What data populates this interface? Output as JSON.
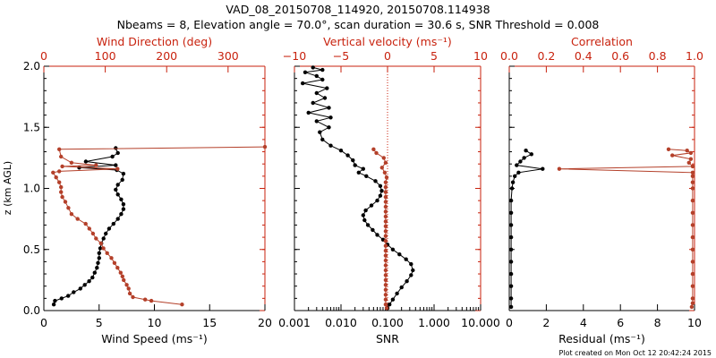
{
  "colors": {
    "black": "#000000",
    "red": "#c8220e",
    "profile_red": "#b4402a"
  },
  "title": {
    "line1": "VAD_08_20150708_114920, 20150708.114938",
    "line2": "Nbeams = 8, Elevation angle = 70.0°, scan duration = 30.6 s, SNR Threshold = 0.008"
  },
  "footer": "Plot created on Mon Oct 12 20:42:24 2015",
  "chart_data": [
    {
      "id": "wind",
      "type": "line",
      "ylabel": "z (km AGL)",
      "ylim": [
        0,
        2.0
      ],
      "yticks": [
        0.0,
        0.5,
        1.0,
        1.5,
        2.0
      ],
      "ytick_labels": [
        "0.0",
        "0.5",
        "1.0",
        "1.5",
        "2.0"
      ],
      "bottom_axis": {
        "label": "Wind Speed (ms⁻¹)",
        "lim": [
          0,
          20
        ],
        "ticks": [
          0,
          5,
          10,
          15,
          20
        ],
        "tick_labels": [
          "0",
          "5",
          "10",
          "15",
          "20"
        ]
      },
      "top_axis": {
        "label": "Wind Direction (deg)",
        "lim": [
          0,
          360
        ],
        "ticks": [
          0,
          100,
          200,
          300
        ],
        "tick_labels": [
          "0",
          "100",
          "200",
          "300"
        ]
      },
      "series": [
        {
          "name": "Wind Speed",
          "axis": "bottom",
          "color": "black",
          "points": [
            [
              0.9,
              0.05
            ],
            [
              1.0,
              0.08
            ],
            [
              1.6,
              0.1
            ],
            [
              2.2,
              0.12
            ],
            [
              2.7,
              0.15
            ],
            [
              3.3,
              0.18
            ],
            [
              3.7,
              0.21
            ],
            [
              4.1,
              0.24
            ],
            [
              4.4,
              0.27
            ],
            [
              4.6,
              0.31
            ],
            [
              4.8,
              0.35
            ],
            [
              4.9,
              0.39
            ],
            [
              5.0,
              0.43
            ],
            [
              5.0,
              0.47
            ],
            [
              5.1,
              0.51
            ],
            [
              5.2,
              0.55
            ],
            [
              5.4,
              0.59
            ],
            [
              5.6,
              0.63
            ],
            [
              5.9,
              0.67
            ],
            [
              6.3,
              0.71
            ],
            [
              6.7,
              0.75
            ],
            [
              7.0,
              0.79
            ],
            [
              7.2,
              0.83
            ],
            [
              7.2,
              0.87
            ],
            [
              7.0,
              0.91
            ],
            [
              6.7,
              0.95
            ],
            [
              6.5,
              0.99
            ],
            [
              6.7,
              1.03
            ],
            [
              7.1,
              1.07
            ],
            [
              7.2,
              1.12
            ],
            [
              6.6,
              1.15
            ],
            [
              3.2,
              1.17
            ],
            [
              6.5,
              1.19
            ],
            [
              3.8,
              1.22
            ],
            [
              6.2,
              1.26
            ],
            [
              6.7,
              1.29
            ],
            [
              6.5,
              1.33
            ]
          ]
        },
        {
          "name": "Wind Direction",
          "axis": "top",
          "color": "red",
          "points": [
            [
              225,
              0.05
            ],
            [
              175,
              0.08
            ],
            [
              165,
              0.09
            ],
            [
              145,
              0.11
            ],
            [
              140,
              0.14
            ],
            [
              138,
              0.18
            ],
            [
              135,
              0.21
            ],
            [
              130,
              0.25
            ],
            [
              128,
              0.28
            ],
            [
              125,
              0.31
            ],
            [
              120,
              0.35
            ],
            [
              115,
              0.39
            ],
            [
              110,
              0.43
            ],
            [
              103,
              0.47
            ],
            [
              97,
              0.51
            ],
            [
              93,
              0.55
            ],
            [
              85,
              0.59
            ],
            [
              80,
              0.63
            ],
            [
              74,
              0.67
            ],
            [
              68,
              0.71
            ],
            [
              55,
              0.75
            ],
            [
              45,
              0.79
            ],
            [
              40,
              0.84
            ],
            [
              35,
              0.89
            ],
            [
              30,
              0.93
            ],
            [
              28,
              0.97
            ],
            [
              28,
              1.01
            ],
            [
              25,
              1.05
            ],
            [
              20,
              1.09
            ],
            [
              15,
              1.13
            ],
            [
              25,
              1.14
            ],
            [
              120,
              1.16
            ],
            [
              30,
              1.18
            ],
            [
              85,
              1.19
            ],
            [
              45,
              1.21
            ],
            [
              28,
              1.26
            ],
            [
              25,
              1.32
            ],
            [
              360,
              1.34
            ]
          ]
        }
      ]
    },
    {
      "id": "vertical",
      "type": "line",
      "ylim": [
        0,
        2.0
      ],
      "yticks": [
        0.0,
        0.5,
        1.0,
        1.5,
        2.0
      ],
      "bottom_axis": {
        "label": "SNR",
        "scale": "log",
        "lim": [
          0.001,
          10
        ],
        "ticks": [
          0.001,
          0.01,
          0.1,
          1,
          10
        ],
        "tick_labels": [
          "0.001",
          "0.010",
          "0.100",
          "1.000",
          "10.000"
        ]
      },
      "top_axis": {
        "label": "Vertical velocity (ms⁻¹)",
        "lim": [
          -10,
          10
        ],
        "ticks": [
          -10,
          -5,
          0,
          5,
          10
        ],
        "tick_labels": [
          "−10",
          "−5",
          "0",
          "5",
          "10"
        ]
      },
      "zero_line": {
        "axis": "top",
        "value": 0,
        "style": "dotted"
      },
      "series": [
        {
          "name": "SNR",
          "axis": "bottom",
          "color": "black",
          "points": [
            [
              0.1,
              0.02
            ],
            [
              0.11,
              0.05
            ],
            [
              0.13,
              0.09
            ],
            [
              0.16,
              0.14
            ],
            [
              0.2,
              0.19
            ],
            [
              0.26,
              0.24
            ],
            [
              0.32,
              0.29
            ],
            [
              0.35,
              0.33
            ],
            [
              0.32,
              0.38
            ],
            [
              0.25,
              0.42
            ],
            [
              0.18,
              0.46
            ],
            [
              0.13,
              0.5
            ],
            [
              0.1,
              0.54
            ],
            [
              0.08,
              0.58
            ],
            [
              0.06,
              0.62
            ],
            [
              0.048,
              0.66
            ],
            [
              0.038,
              0.7
            ],
            [
              0.032,
              0.74
            ],
            [
              0.03,
              0.78
            ],
            [
              0.034,
              0.82
            ],
            [
              0.045,
              0.86
            ],
            [
              0.06,
              0.9
            ],
            [
              0.07,
              0.94
            ],
            [
              0.075,
              0.98
            ],
            [
              0.07,
              1.02
            ],
            [
              0.055,
              1.06
            ],
            [
              0.035,
              1.1
            ],
            [
              0.024,
              1.13
            ],
            [
              0.03,
              1.16
            ],
            [
              0.02,
              1.19
            ],
            [
              0.018,
              1.23
            ],
            [
              0.014,
              1.27
            ],
            [
              0.01,
              1.31
            ],
            [
              0.006,
              1.35
            ],
            [
              0.004,
              1.4
            ],
            [
              0.0035,
              1.46
            ],
            [
              0.0055,
              1.5
            ],
            [
              0.003,
              1.55
            ],
            [
              0.006,
              1.58
            ],
            [
              0.002,
              1.62
            ],
            [
              0.0055,
              1.66
            ],
            [
              0.0025,
              1.7
            ],
            [
              0.0045,
              1.74
            ],
            [
              0.003,
              1.78
            ],
            [
              0.005,
              1.82
            ],
            [
              0.0015,
              1.86
            ],
            [
              0.004,
              1.89
            ],
            [
              0.003,
              1.92
            ],
            [
              0.0017,
              1.95
            ],
            [
              0.004,
              1.97
            ],
            [
              0.0025,
              1.99
            ]
          ]
        },
        {
          "name": "Vertical velocity",
          "axis": "top",
          "color": "red",
          "points": [
            [
              -0.1,
              0.02
            ],
            [
              -0.2,
              0.05
            ],
            [
              -0.2,
              0.09
            ],
            [
              -0.2,
              0.13
            ],
            [
              -0.2,
              0.17
            ],
            [
              -0.2,
              0.21
            ],
            [
              -0.2,
              0.25
            ],
            [
              -0.2,
              0.29
            ],
            [
              -0.2,
              0.33
            ],
            [
              -0.2,
              0.37
            ],
            [
              -0.2,
              0.41
            ],
            [
              -0.2,
              0.45
            ],
            [
              -0.2,
              0.49
            ],
            [
              -0.2,
              0.53
            ],
            [
              -0.2,
              0.57
            ],
            [
              -0.2,
              0.61
            ],
            [
              -0.2,
              0.65
            ],
            [
              -0.2,
              0.69
            ],
            [
              -0.2,
              0.73
            ],
            [
              -0.2,
              0.77
            ],
            [
              -0.2,
              0.81
            ],
            [
              -0.2,
              0.85
            ],
            [
              -0.2,
              0.89
            ],
            [
              -0.2,
              0.93
            ],
            [
              -0.2,
              0.97
            ],
            [
              -0.2,
              1.01
            ],
            [
              -0.2,
              1.05
            ],
            [
              -0.1,
              1.09
            ],
            [
              -0.3,
              1.13
            ],
            [
              -0.6,
              1.17
            ],
            [
              -0.2,
              1.21
            ],
            [
              -0.4,
              1.25
            ],
            [
              -1.2,
              1.29
            ],
            [
              -1.5,
              1.32
            ]
          ]
        }
      ]
    },
    {
      "id": "correlation",
      "type": "line",
      "ylim": [
        0,
        2.0
      ],
      "yticks": [
        0.0,
        0.5,
        1.0,
        1.5,
        2.0
      ],
      "bottom_axis": {
        "label": "Residual (ms⁻¹)",
        "lim": [
          0,
          10
        ],
        "ticks": [
          0,
          2,
          4,
          6,
          8,
          10
        ],
        "tick_labels": [
          "0",
          "2",
          "4",
          "6",
          "8",
          "10"
        ]
      },
      "top_axis": {
        "label": "Correlation",
        "lim": [
          0,
          1
        ],
        "ticks": [
          0,
          0.2,
          0.4,
          0.6,
          0.8,
          1.0
        ],
        "tick_labels": [
          "0.0",
          "0.2",
          "0.4",
          "0.6",
          "0.8",
          "1.0"
        ]
      },
      "series": [
        {
          "name": "Residual",
          "axis": "bottom",
          "color": "black",
          "points": [
            [
              0.1,
              0.03
            ],
            [
              0.1,
              0.1
            ],
            [
              0.1,
              0.2
            ],
            [
              0.1,
              0.3
            ],
            [
              0.1,
              0.4
            ],
            [
              0.1,
              0.5
            ],
            [
              0.1,
              0.6
            ],
            [
              0.1,
              0.7
            ],
            [
              0.1,
              0.8
            ],
            [
              0.1,
              0.9
            ],
            [
              0.15,
              1.0
            ],
            [
              0.2,
              1.05
            ],
            [
              0.3,
              1.1
            ],
            [
              0.5,
              1.13
            ],
            [
              1.8,
              1.16
            ],
            [
              0.4,
              1.19
            ],
            [
              0.6,
              1.22
            ],
            [
              0.8,
              1.25
            ],
            [
              1.2,
              1.28
            ],
            [
              0.9,
              1.31
            ]
          ]
        },
        {
          "name": "Correlation",
          "axis": "top",
          "color": "red",
          "points": [
            [
              0.985,
              0.03
            ],
            [
              0.99,
              0.06
            ],
            [
              0.99,
              0.1
            ],
            [
              0.99,
              0.2
            ],
            [
              0.99,
              0.3
            ],
            [
              0.99,
              0.4
            ],
            [
              0.99,
              0.5
            ],
            [
              0.99,
              0.6
            ],
            [
              0.99,
              0.7
            ],
            [
              0.99,
              0.8
            ],
            [
              0.99,
              0.9
            ],
            [
              0.99,
              1.0
            ],
            [
              0.99,
              1.05
            ],
            [
              0.99,
              1.1
            ],
            [
              0.99,
              1.13
            ],
            [
              0.27,
              1.16
            ],
            [
              0.99,
              1.18
            ],
            [
              0.97,
              1.21
            ],
            [
              0.98,
              1.24
            ],
            [
              0.88,
              1.27
            ],
            [
              0.98,
              1.29
            ],
            [
              0.96,
              1.31
            ],
            [
              0.86,
              1.32
            ]
          ]
        }
      ]
    }
  ]
}
